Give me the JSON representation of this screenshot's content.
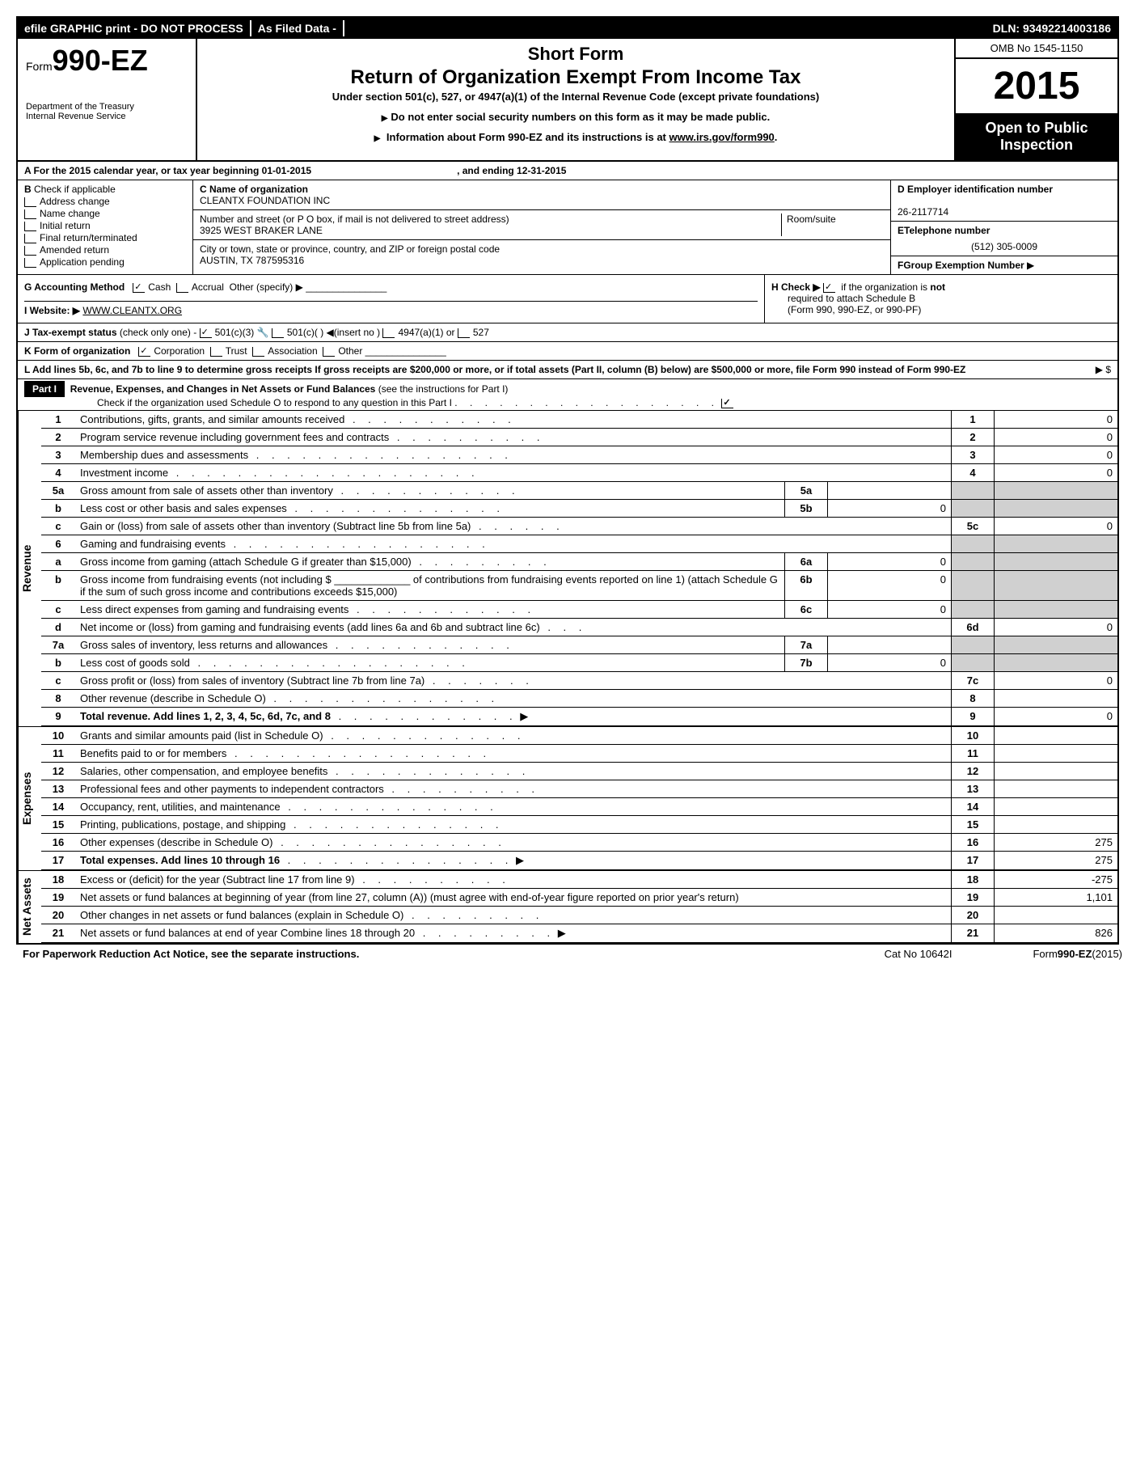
{
  "top_bar": {
    "left": "efile GRAPHIC print - DO NOT PROCESS",
    "mid": "As Filed Data -",
    "right": "DLN: 93492214003186"
  },
  "header": {
    "form_prefix": "Form",
    "form_number": "990-EZ",
    "dept1": "Department of the Treasury",
    "dept2": "Internal Revenue Service",
    "short_form": "Short Form",
    "title": "Return of Organization Exempt From Income Tax",
    "subtitle": "Under section 501(c), 527, or 4947(a)(1) of the Internal Revenue Code (except private foundations)",
    "notice1": "Do not enter social security numbers on this form as it may be made public.",
    "notice2": "Information about Form 990-EZ and its instructions is at ",
    "notice2_link": "www.irs.gov/form990",
    "omb": "OMB No 1545-1150",
    "year": "2015",
    "open1": "Open to Public",
    "open2": "Inspection"
  },
  "section_a": {
    "text": "A  For the 2015 calendar year, or tax year beginning 01-01-2015",
    "ending": ", and ending 12-31-2015"
  },
  "section_b": {
    "label": "B",
    "check_label": "Check if applicable",
    "items": [
      "Address change",
      "Name change",
      "Initial return",
      "Final return/terminated",
      "Amended return",
      "Application pending"
    ]
  },
  "section_c": {
    "name_label": "C Name of organization",
    "name": "CLEANTX FOUNDATION INC",
    "street_label": "Number and street (or P O box, if mail is not delivered to street address)",
    "room_label": "Room/suite",
    "street": "3925 WEST BRAKER LANE",
    "city_label": "City or town, state or province, country, and ZIP or foreign postal code",
    "city": "AUSTIN, TX 787595316"
  },
  "section_d": {
    "label": "D Employer identification number",
    "value": "26-2117714",
    "e_label": "ETelephone number",
    "e_value": "(512) 305-0009",
    "f_label": "FGroup Exemption Number"
  },
  "section_g": {
    "label": "G Accounting Method",
    "cash": "Cash",
    "accrual": "Accrual",
    "other": "Other (specify)"
  },
  "section_h": {
    "text1": "H   Check ▶",
    "text2": "if the organization is",
    "not": "not",
    "text3": "required to attach Schedule B",
    "text4": "(Form 990, 990-EZ, or 990-PF)"
  },
  "section_i": {
    "label": "I Website: ▶",
    "value": "WWW.CLEANTX.ORG"
  },
  "section_j": {
    "label": "J Tax-exempt status",
    "note": "(check only one) -",
    "opt1": "501(c)(3)",
    "opt2": "501(c)( )",
    "insert": "(insert no )",
    "opt3": "4947(a)(1) or",
    "opt4": "527"
  },
  "section_k": {
    "label": "K Form of organization",
    "corp": "Corporation",
    "trust": "Trust",
    "assoc": "Association",
    "other": "Other"
  },
  "section_l": {
    "text": "L Add lines 5b, 6c, and 7b to line 9 to determine gross receipts If gross receipts are $200,000 or more, or if total assets (Part II, column (B) below) are $500,000 or more, file Form 990 instead of Form 990-EZ",
    "arrow": "▶ $"
  },
  "part1": {
    "label": "Part I",
    "title": "Revenue, Expenses, and Changes in Net Assets or Fund Balances",
    "note": "(see the instructions for Part I)",
    "check_note": "Check if the organization used Schedule O to respond to any question in this Part I"
  },
  "sides": {
    "revenue": "Revenue",
    "expenses": "Expenses",
    "netassets": "Net Assets"
  },
  "lines": [
    {
      "n": "1",
      "desc": "Contributions, gifts, grants, and similar amounts received",
      "en": "1",
      "ev": "0"
    },
    {
      "n": "2",
      "desc": "Program service revenue including government fees and contracts",
      "en": "2",
      "ev": "0"
    },
    {
      "n": "3",
      "desc": "Membership dues and assessments",
      "en": "3",
      "ev": "0"
    },
    {
      "n": "4",
      "desc": "Investment income",
      "en": "4",
      "ev": "0"
    },
    {
      "n": "5a",
      "desc": "Gross amount from sale of assets other than inventory",
      "sn": "5a",
      "sv": "",
      "shaded": true
    },
    {
      "n": "b",
      "desc": "Less cost or other basis and sales expenses",
      "sn": "5b",
      "sv": "0",
      "shaded": true
    },
    {
      "n": "c",
      "desc": "Gain or (loss) from sale of assets other than inventory (Subtract line 5b from line 5a)",
      "en": "5c",
      "ev": "0"
    },
    {
      "n": "6",
      "desc": "Gaming and fundraising events",
      "shaded": true
    },
    {
      "n": "a",
      "desc": "Gross income from gaming (attach Schedule G if greater than $15,000)",
      "sn": "6a",
      "sv": "0",
      "shaded": true
    },
    {
      "n": "b",
      "desc": "Gross income from fundraising events (not including $ _____________ of contributions from fundraising events reported on line 1) (attach Schedule G if the sum of such gross income and contributions exceeds $15,000)",
      "sn": "6b",
      "sv": "0",
      "shaded": true
    },
    {
      "n": "c",
      "desc": "Less direct expenses from gaming and fundraising events",
      "sn": "6c",
      "sv": "0",
      "shaded": true
    },
    {
      "n": "d",
      "desc": "Net income or (loss) from gaming and fundraising events (add lines 6a and 6b and subtract line 6c)",
      "en": "6d",
      "ev": "0"
    },
    {
      "n": "7a",
      "desc": "Gross sales of inventory, less returns and allowances",
      "sn": "7a",
      "sv": "",
      "shaded": true
    },
    {
      "n": "b",
      "desc": "Less cost of goods sold",
      "sn": "7b",
      "sv": "0",
      "shaded": true
    },
    {
      "n": "c",
      "desc": "Gross profit or (loss) from sales of inventory (Subtract line 7b from line 7a)",
      "en": "7c",
      "ev": "0"
    },
    {
      "n": "8",
      "desc": "Other revenue (describe in Schedule O)",
      "en": "8",
      "ev": ""
    },
    {
      "n": "9",
      "desc": "Total revenue. Add lines 1, 2, 3, 4, 5c, 6d, 7c, and 8",
      "en": "9",
      "ev": "0",
      "bold": true,
      "arrow": true
    }
  ],
  "exp_lines": [
    {
      "n": "10",
      "desc": "Grants and similar amounts paid (list in Schedule O)",
      "en": "10",
      "ev": ""
    },
    {
      "n": "11",
      "desc": "Benefits paid to or for members",
      "en": "11",
      "ev": ""
    },
    {
      "n": "12",
      "desc": "Salaries, other compensation, and employee benefits",
      "en": "12",
      "ev": ""
    },
    {
      "n": "13",
      "desc": "Professional fees and other payments to independent contractors",
      "en": "13",
      "ev": ""
    },
    {
      "n": "14",
      "desc": "Occupancy, rent, utilities, and maintenance",
      "en": "14",
      "ev": ""
    },
    {
      "n": "15",
      "desc": "Printing, publications, postage, and shipping",
      "en": "15",
      "ev": ""
    },
    {
      "n": "16",
      "desc": "Other expenses (describe in Schedule O)",
      "en": "16",
      "ev": "275"
    },
    {
      "n": "17",
      "desc": "Total expenses. Add lines 10 through 16",
      "en": "17",
      "ev": "275",
      "bold": true,
      "arrow": true
    }
  ],
  "na_lines": [
    {
      "n": "18",
      "desc": "Excess or (deficit) for the year (Subtract line 17 from line 9)",
      "en": "18",
      "ev": "-275"
    },
    {
      "n": "19",
      "desc": "Net assets or fund balances at beginning of year (from line 27, column (A)) (must agree with end-of-year figure reported on prior year's return)",
      "en": "19",
      "ev": "1,101"
    },
    {
      "n": "20",
      "desc": "Other changes in net assets or fund balances (explain in Schedule O)",
      "en": "20",
      "ev": ""
    },
    {
      "n": "21",
      "desc": "Net assets or fund balances at end of year Combine lines 18 through 20",
      "en": "21",
      "ev": "826",
      "arrow": true
    }
  ],
  "footer": {
    "left": "For Paperwork Reduction Act Notice, see the separate instructions.",
    "mid": "Cat No 10642I",
    "right_pre": "Form",
    "right_form": "990-EZ",
    "right_year": "(2015)"
  }
}
